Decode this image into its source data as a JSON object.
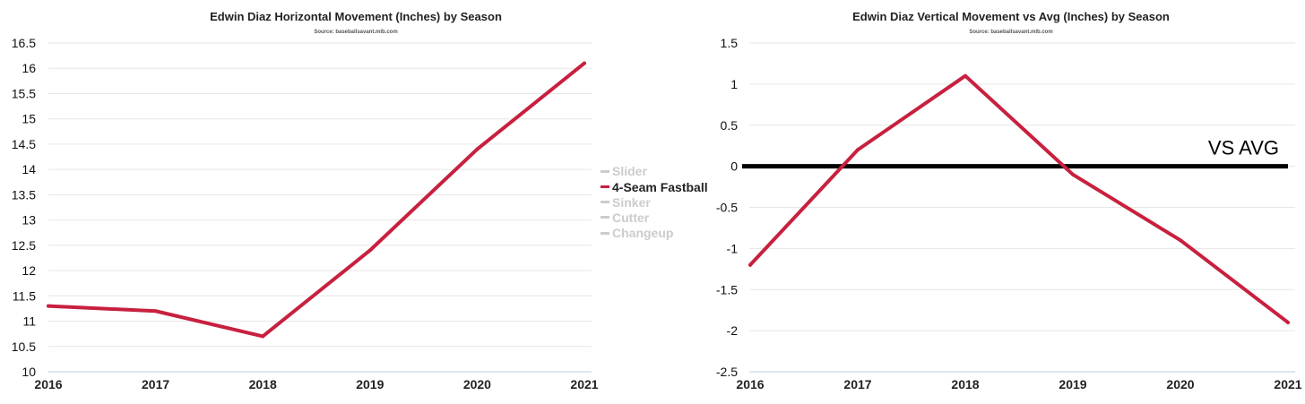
{
  "chart_data": [
    {
      "type": "line",
      "title": "Edwin Diaz Horizontal Movement (Inches) by Season",
      "subtitle": "Source: baseballsavant.mlb.com",
      "categories": [
        "2016",
        "2017",
        "2018",
        "2019",
        "2020",
        "2021"
      ],
      "y_ticks": [
        "10",
        "10.5",
        "11",
        "11.5",
        "12",
        "12.5",
        "13",
        "13.5",
        "14",
        "14.5",
        "15",
        "15.5",
        "16",
        "16.5"
      ],
      "ylim": [
        10,
        16.5
      ],
      "grid": true,
      "series": [
        {
          "name": "4-Seam Fastball",
          "color": "#c8203e",
          "values": [
            11.3,
            11.2,
            10.7,
            12.4,
            14.4,
            16.1
          ]
        }
      ],
      "legend": {
        "placement": "right",
        "items": [
          {
            "label": "Slider",
            "active": false
          },
          {
            "label": "4-Seam Fastball",
            "active": true
          },
          {
            "label": "Sinker",
            "active": false
          },
          {
            "label": "Cutter",
            "active": false
          },
          {
            "label": "Changeup",
            "active": false
          }
        ]
      }
    },
    {
      "type": "line",
      "title": "Edwin Diaz Vertical Movement vs Avg (Inches) by Season",
      "subtitle": "Source: baseballsavant.mlb.com",
      "categories": [
        "2016",
        "2017",
        "2018",
        "2019",
        "2020",
        "2021"
      ],
      "y_ticks": [
        "-2.5",
        "-2",
        "-1.5",
        "-1",
        "-0.5",
        "0",
        "0.5",
        "1",
        "1.5"
      ],
      "ylim": [
        -2.5,
        1.5
      ],
      "grid": true,
      "series": [
        {
          "color": "#c8203e",
          "values": [
            -1.2,
            0.2,
            1.1,
            -0.1,
            -0.9,
            -1.9
          ]
        }
      ],
      "reference_line": {
        "value": 0,
        "label": "VS AVG",
        "color": "#000000"
      }
    }
  ],
  "colors": {
    "series": "#c8203e",
    "legend_active": "#222222",
    "legend_inactive": "#cccccc",
    "grid": "#e6e6e6"
  }
}
